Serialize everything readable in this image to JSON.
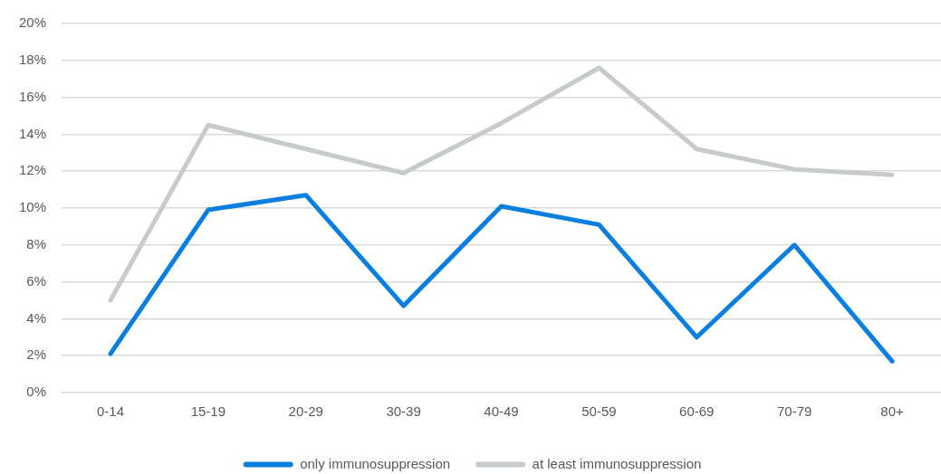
{
  "chart_data": {
    "type": "line",
    "categories": [
      "0-14",
      "15-19",
      "20-29",
      "30-39",
      "40-49",
      "50-59",
      "60-69",
      "70-79",
      "80+"
    ],
    "series": [
      {
        "name": "only immunosuppression",
        "color": "#0a7fe0",
        "values": [
          2.1,
          9.9,
          10.7,
          4.7,
          10.1,
          9.1,
          3.0,
          8.0,
          1.7
        ]
      },
      {
        "name": "at least immunosuppression",
        "color": "#c8cbcb",
        "values": [
          5.0,
          14.5,
          13.2,
          11.9,
          14.6,
          17.6,
          13.2,
          12.1,
          11.8
        ]
      }
    ],
    "ylim": [
      0,
      20
    ],
    "yticks": [
      {
        "value": 0,
        "label": "0%"
      },
      {
        "value": 2,
        "label": "2%"
      },
      {
        "value": 4,
        "label": "4%"
      },
      {
        "value": 6,
        "label": "6%"
      },
      {
        "value": 8,
        "label": "8%"
      },
      {
        "value": 10,
        "label": "10%"
      },
      {
        "value": 12,
        "label": "12%"
      },
      {
        "value": 14,
        "label": "14%"
      },
      {
        "value": 16,
        "label": "16%"
      },
      {
        "value": 18,
        "label": "18%"
      },
      {
        "value": 20,
        "label": "20%"
      }
    ],
    "grid": "y",
    "legend": "bottom",
    "marker": "none",
    "line_style": "solid"
  }
}
